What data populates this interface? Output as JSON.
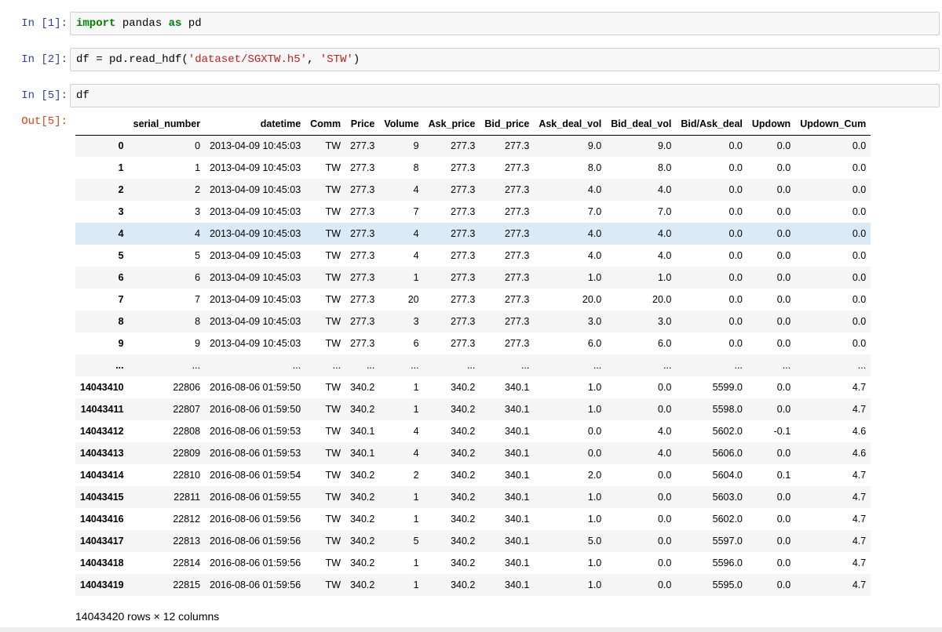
{
  "cells": [
    {
      "prompt": "In [1]:",
      "code": [
        {
          "t": "import",
          "c": "kw"
        },
        {
          "t": " pandas ",
          "c": ""
        },
        {
          "t": "as",
          "c": "kw"
        },
        {
          "t": " pd",
          "c": ""
        }
      ]
    },
    {
      "prompt": "In [2]:",
      "code": [
        {
          "t": "df = pd.read_hdf(",
          "c": ""
        },
        {
          "t": "'dataset/SGXTW.h5'",
          "c": "str"
        },
        {
          "t": ", ",
          "c": ""
        },
        {
          "t": "'STW'",
          "c": "str"
        },
        {
          "t": ")",
          "c": ""
        }
      ]
    },
    {
      "prompt": "In [5]:",
      "code": [
        {
          "t": "df",
          "c": ""
        }
      ]
    }
  ],
  "output": {
    "prompt": "Out[5]:",
    "columns": [
      "",
      "serial_number",
      "datetime",
      "Comm",
      "Price",
      "Volume",
      "Ask_price",
      "Bid_price",
      "Ask_deal_vol",
      "Bid_deal_vol",
      "Bid/Ask_deal",
      "Updown",
      "Updown_Cum"
    ],
    "highlight_row": 4,
    "rows": [
      [
        "0",
        "0",
        "2013-04-09 10:45:03",
        "TW",
        "277.3",
        "9",
        "277.3",
        "277.3",
        "9.0",
        "9.0",
        "0.0",
        "0.0",
        "0.0"
      ],
      [
        "1",
        "1",
        "2013-04-09 10:45:03",
        "TW",
        "277.3",
        "8",
        "277.3",
        "277.3",
        "8.0",
        "8.0",
        "0.0",
        "0.0",
        "0.0"
      ],
      [
        "2",
        "2",
        "2013-04-09 10:45:03",
        "TW",
        "277.3",
        "4",
        "277.3",
        "277.3",
        "4.0",
        "4.0",
        "0.0",
        "0.0",
        "0.0"
      ],
      [
        "3",
        "3",
        "2013-04-09 10:45:03",
        "TW",
        "277.3",
        "7",
        "277.3",
        "277.3",
        "7.0",
        "7.0",
        "0.0",
        "0.0",
        "0.0"
      ],
      [
        "4",
        "4",
        "2013-04-09 10:45:03",
        "TW",
        "277.3",
        "4",
        "277.3",
        "277.3",
        "4.0",
        "4.0",
        "0.0",
        "0.0",
        "0.0"
      ],
      [
        "5",
        "5",
        "2013-04-09 10:45:03",
        "TW",
        "277.3",
        "4",
        "277.3",
        "277.3",
        "4.0",
        "4.0",
        "0.0",
        "0.0",
        "0.0"
      ],
      [
        "6",
        "6",
        "2013-04-09 10:45:03",
        "TW",
        "277.3",
        "1",
        "277.3",
        "277.3",
        "1.0",
        "1.0",
        "0.0",
        "0.0",
        "0.0"
      ],
      [
        "7",
        "7",
        "2013-04-09 10:45:03",
        "TW",
        "277.3",
        "20",
        "277.3",
        "277.3",
        "20.0",
        "20.0",
        "0.0",
        "0.0",
        "0.0"
      ],
      [
        "8",
        "8",
        "2013-04-09 10:45:03",
        "TW",
        "277.3",
        "3",
        "277.3",
        "277.3",
        "3.0",
        "3.0",
        "0.0",
        "0.0",
        "0.0"
      ],
      [
        "9",
        "9",
        "2013-04-09 10:45:03",
        "TW",
        "277.3",
        "6",
        "277.3",
        "277.3",
        "6.0",
        "6.0",
        "0.0",
        "0.0",
        "0.0"
      ],
      [
        "...",
        "...",
        "...",
        "...",
        "...",
        "...",
        "...",
        "...",
        "...",
        "...",
        "...",
        "...",
        "..."
      ],
      [
        "14043410",
        "22806",
        "2016-08-06 01:59:50",
        "TW",
        "340.2",
        "1",
        "340.2",
        "340.1",
        "1.0",
        "0.0",
        "5599.0",
        "0.0",
        "4.7"
      ],
      [
        "14043411",
        "22807",
        "2016-08-06 01:59:50",
        "TW",
        "340.2",
        "1",
        "340.2",
        "340.1",
        "1.0",
        "0.0",
        "5598.0",
        "0.0",
        "4.7"
      ],
      [
        "14043412",
        "22808",
        "2016-08-06 01:59:53",
        "TW",
        "340.1",
        "4",
        "340.2",
        "340.1",
        "0.0",
        "4.0",
        "5602.0",
        "-0.1",
        "4.6"
      ],
      [
        "14043413",
        "22809",
        "2016-08-06 01:59:53",
        "TW",
        "340.1",
        "4",
        "340.2",
        "340.1",
        "0.0",
        "4.0",
        "5606.0",
        "0.0",
        "4.6"
      ],
      [
        "14043414",
        "22810",
        "2016-08-06 01:59:54",
        "TW",
        "340.2",
        "2",
        "340.2",
        "340.1",
        "2.0",
        "0.0",
        "5604.0",
        "0.1",
        "4.7"
      ],
      [
        "14043415",
        "22811",
        "2016-08-06 01:59:55",
        "TW",
        "340.2",
        "1",
        "340.2",
        "340.1",
        "1.0",
        "0.0",
        "5603.0",
        "0.0",
        "4.7"
      ],
      [
        "14043416",
        "22812",
        "2016-08-06 01:59:56",
        "TW",
        "340.2",
        "1",
        "340.2",
        "340.1",
        "1.0",
        "0.0",
        "5602.0",
        "0.0",
        "4.7"
      ],
      [
        "14043417",
        "22813",
        "2016-08-06 01:59:56",
        "TW",
        "340.2",
        "5",
        "340.2",
        "340.1",
        "5.0",
        "0.0",
        "5597.0",
        "0.0",
        "4.7"
      ],
      [
        "14043418",
        "22814",
        "2016-08-06 01:59:56",
        "TW",
        "340.2",
        "1",
        "340.2",
        "340.1",
        "1.0",
        "0.0",
        "5596.0",
        "0.0",
        "4.7"
      ],
      [
        "14043419",
        "22815",
        "2016-08-06 01:59:56",
        "TW",
        "340.2",
        "1",
        "340.2",
        "340.1",
        "1.0",
        "0.0",
        "5595.0",
        "0.0",
        "4.7"
      ]
    ],
    "shape": "14043420 rows × 12 columns"
  },
  "colors": {
    "in_prompt": "#303f9f",
    "out_prompt": "#d84315",
    "keyword": "#008000",
    "string": "#ba2121",
    "row_highlight": "#daeaf7"
  }
}
